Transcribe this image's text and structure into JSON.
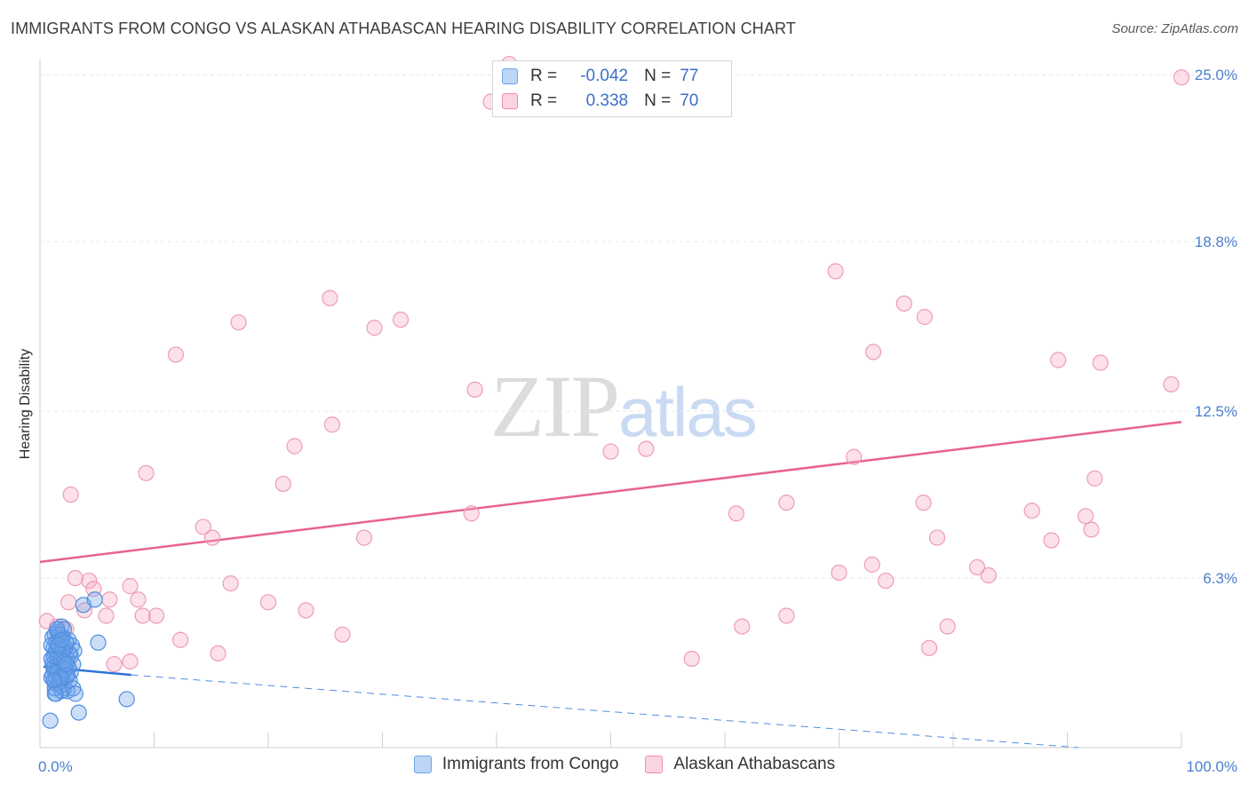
{
  "title": "IMMIGRANTS FROM CONGO VS ALASKAN ATHABASCAN HEARING DISABILITY CORRELATION CHART",
  "source": "Source: ZipAtlas.com",
  "watermark": {
    "zip": "ZIP",
    "atlas": "atlas"
  },
  "legend": {
    "rows": [
      {
        "r_label": "R =",
        "r_value": "-0.042",
        "n_label": "N =",
        "n_value": "77",
        "color": "#6ea3e8"
      },
      {
        "r_label": "R =",
        "r_value": "0.338",
        "n_label": "N =",
        "n_value": "70",
        "color": "#f08aa8"
      }
    ]
  },
  "bottom_legend": [
    {
      "label": "Immigrants from Congo",
      "color": "#6ea3e8"
    },
    {
      "label": "Alaskan Athabascans",
      "color": "#f08aa8"
    }
  ],
  "chart_data": {
    "type": "scatter",
    "title": "IMMIGRANTS FROM CONGO VS ALASKAN ATHABASCAN HEARING DISABILITY CORRELATION CHART",
    "xlabel": "",
    "ylabel": "Hearing Disability",
    "xlim": [
      0,
      100
    ],
    "ylim": [
      0,
      25.6
    ],
    "x_tick_labels": [
      "0.0%",
      "100.0%"
    ],
    "y_ticks": [
      6.3,
      12.5,
      18.8,
      25.0
    ],
    "y_tick_labels": [
      "6.3%",
      "12.5%",
      "18.8%",
      "25.0%"
    ],
    "grid": true,
    "legend_position": "top-center",
    "series": [
      {
        "name": "Immigrants from Congo",
        "color": "#6ea3e8",
        "trend": {
          "x0": 0.3,
          "y0": 3.0,
          "x1": 8.0,
          "y1": 2.7,
          "dash_to_x": 91.0,
          "dash_to_y": 0.0
        },
        "points": [
          [
            1.3,
            3.5
          ],
          [
            1.5,
            3.2
          ],
          [
            1.8,
            3.8
          ],
          [
            1.2,
            2.9
          ],
          [
            2.0,
            4.1
          ],
          [
            1.6,
            3.0
          ],
          [
            1.4,
            2.6
          ],
          [
            2.2,
            3.4
          ],
          [
            1.9,
            2.8
          ],
          [
            1.1,
            3.1
          ],
          [
            1.7,
            3.6
          ],
          [
            2.4,
            3.3
          ],
          [
            1.5,
            4.3
          ],
          [
            1.3,
            2.4
          ],
          [
            2.1,
            2.2
          ],
          [
            1.8,
            3.9
          ],
          [
            2.6,
            3.5
          ],
          [
            1.2,
            3.7
          ],
          [
            1.6,
            2.9
          ],
          [
            2.3,
            2.6
          ],
          [
            1.0,
            3.3
          ],
          [
            1.9,
            4.5
          ],
          [
            2.8,
            3.8
          ],
          [
            1.4,
            2.0
          ],
          [
            1.7,
            2.5
          ],
          [
            2.5,
            4.0
          ],
          [
            3.0,
            3.6
          ],
          [
            1.1,
            2.7
          ],
          [
            2.0,
            3.0
          ],
          [
            1.3,
            4.2
          ],
          [
            2.7,
            2.8
          ],
          [
            1.5,
            3.4
          ],
          [
            1.8,
            2.3
          ],
          [
            2.2,
            3.7
          ],
          [
            1.6,
            4.0
          ],
          [
            2.9,
            3.1
          ],
          [
            1.0,
            2.6
          ],
          [
            2.4,
            2.1
          ],
          [
            1.4,
            3.9
          ],
          [
            1.9,
            3.2
          ],
          [
            2.1,
            4.4
          ],
          [
            1.2,
            3.0
          ],
          [
            2.6,
            2.5
          ],
          [
            1.7,
            3.5
          ],
          [
            1.3,
            2.2
          ],
          [
            2.3,
            3.9
          ],
          [
            1.5,
            2.8
          ],
          [
            2.0,
            2.6
          ],
          [
            1.8,
            3.3
          ],
          [
            1.1,
            4.1
          ],
          [
            2.5,
            3.0
          ],
          [
            1.6,
            2.4
          ],
          [
            1.4,
            3.6
          ],
          [
            2.2,
            2.9
          ],
          [
            1.9,
            2.1
          ],
          [
            1.2,
            3.4
          ],
          [
            2.7,
            3.4
          ],
          [
            1.7,
            4.2
          ],
          [
            1.0,
            3.8
          ],
          [
            2.4,
            2.7
          ],
          [
            1.3,
            2.0
          ],
          [
            2.0,
            3.6
          ],
          [
            1.5,
            4.4
          ],
          [
            1.8,
            2.6
          ],
          [
            2.1,
            3.2
          ],
          [
            1.6,
            3.8
          ],
          [
            2.9,
            2.2
          ],
          [
            1.9,
            4.0
          ],
          [
            1.2,
            2.5
          ],
          [
            2.3,
            3.1
          ],
          [
            3.8,
            5.3
          ],
          [
            4.8,
            5.5
          ],
          [
            5.1,
            3.9
          ],
          [
            3.1,
            2.0
          ],
          [
            7.6,
            1.8
          ],
          [
            3.4,
            1.3
          ],
          [
            0.9,
            1.0
          ]
        ]
      },
      {
        "name": "Alaskan Athabascans",
        "color": "#f08aa8",
        "trend": {
          "x0": 0.0,
          "y0": 6.9,
          "x1": 100.0,
          "y1": 12.1
        },
        "points": [
          [
            41.1,
            25.4
          ],
          [
            39.5,
            24.0
          ],
          [
            100.0,
            24.9
          ],
          [
            11.9,
            14.6
          ],
          [
            17.4,
            15.8
          ],
          [
            25.4,
            16.7
          ],
          [
            29.3,
            15.6
          ],
          [
            31.6,
            15.9
          ],
          [
            38.1,
            13.3
          ],
          [
            22.3,
            11.2
          ],
          [
            25.6,
            12.0
          ],
          [
            21.3,
            9.8
          ],
          [
            9.3,
            10.2
          ],
          [
            2.7,
            9.4
          ],
          [
            14.3,
            8.2
          ],
          [
            15.1,
            7.8
          ],
          [
            28.4,
            7.8
          ],
          [
            37.8,
            8.7
          ],
          [
            50.0,
            11.0
          ],
          [
            53.1,
            11.1
          ],
          [
            69.7,
            17.7
          ],
          [
            75.7,
            16.5
          ],
          [
            77.5,
            16.0
          ],
          [
            73.0,
            14.7
          ],
          [
            89.2,
            14.4
          ],
          [
            92.9,
            14.3
          ],
          [
            99.1,
            13.5
          ],
          [
            71.3,
            10.8
          ],
          [
            92.4,
            10.0
          ],
          [
            61.0,
            8.7
          ],
          [
            65.4,
            9.1
          ],
          [
            77.4,
            9.1
          ],
          [
            78.6,
            7.8
          ],
          [
            86.9,
            8.8
          ],
          [
            88.6,
            7.7
          ],
          [
            91.6,
            8.6
          ],
          [
            92.1,
            8.1
          ],
          [
            72.9,
            6.8
          ],
          [
            70.0,
            6.5
          ],
          [
            74.1,
            6.2
          ],
          [
            82.1,
            6.7
          ],
          [
            83.1,
            6.4
          ],
          [
            4.3,
            6.2
          ],
          [
            4.7,
            5.9
          ],
          [
            7.9,
            6.0
          ],
          [
            16.7,
            6.1
          ],
          [
            2.5,
            5.4
          ],
          [
            6.1,
            5.5
          ],
          [
            8.6,
            5.5
          ],
          [
            20.0,
            5.4
          ],
          [
            23.3,
            5.1
          ],
          [
            9.0,
            4.9
          ],
          [
            10.2,
            4.9
          ],
          [
            5.8,
            4.9
          ],
          [
            3.9,
            5.1
          ],
          [
            0.6,
            4.7
          ],
          [
            1.5,
            4.5
          ],
          [
            2.3,
            4.4
          ],
          [
            12.3,
            4.0
          ],
          [
            15.6,
            3.5
          ],
          [
            26.5,
            4.2
          ],
          [
            61.5,
            4.5
          ],
          [
            65.4,
            4.9
          ],
          [
            79.5,
            4.5
          ],
          [
            77.9,
            3.7
          ],
          [
            57.1,
            3.3
          ],
          [
            6.5,
            3.1
          ],
          [
            7.9,
            3.2
          ],
          [
            1.9,
            4.0
          ],
          [
            3.1,
            6.3
          ]
        ]
      }
    ]
  }
}
